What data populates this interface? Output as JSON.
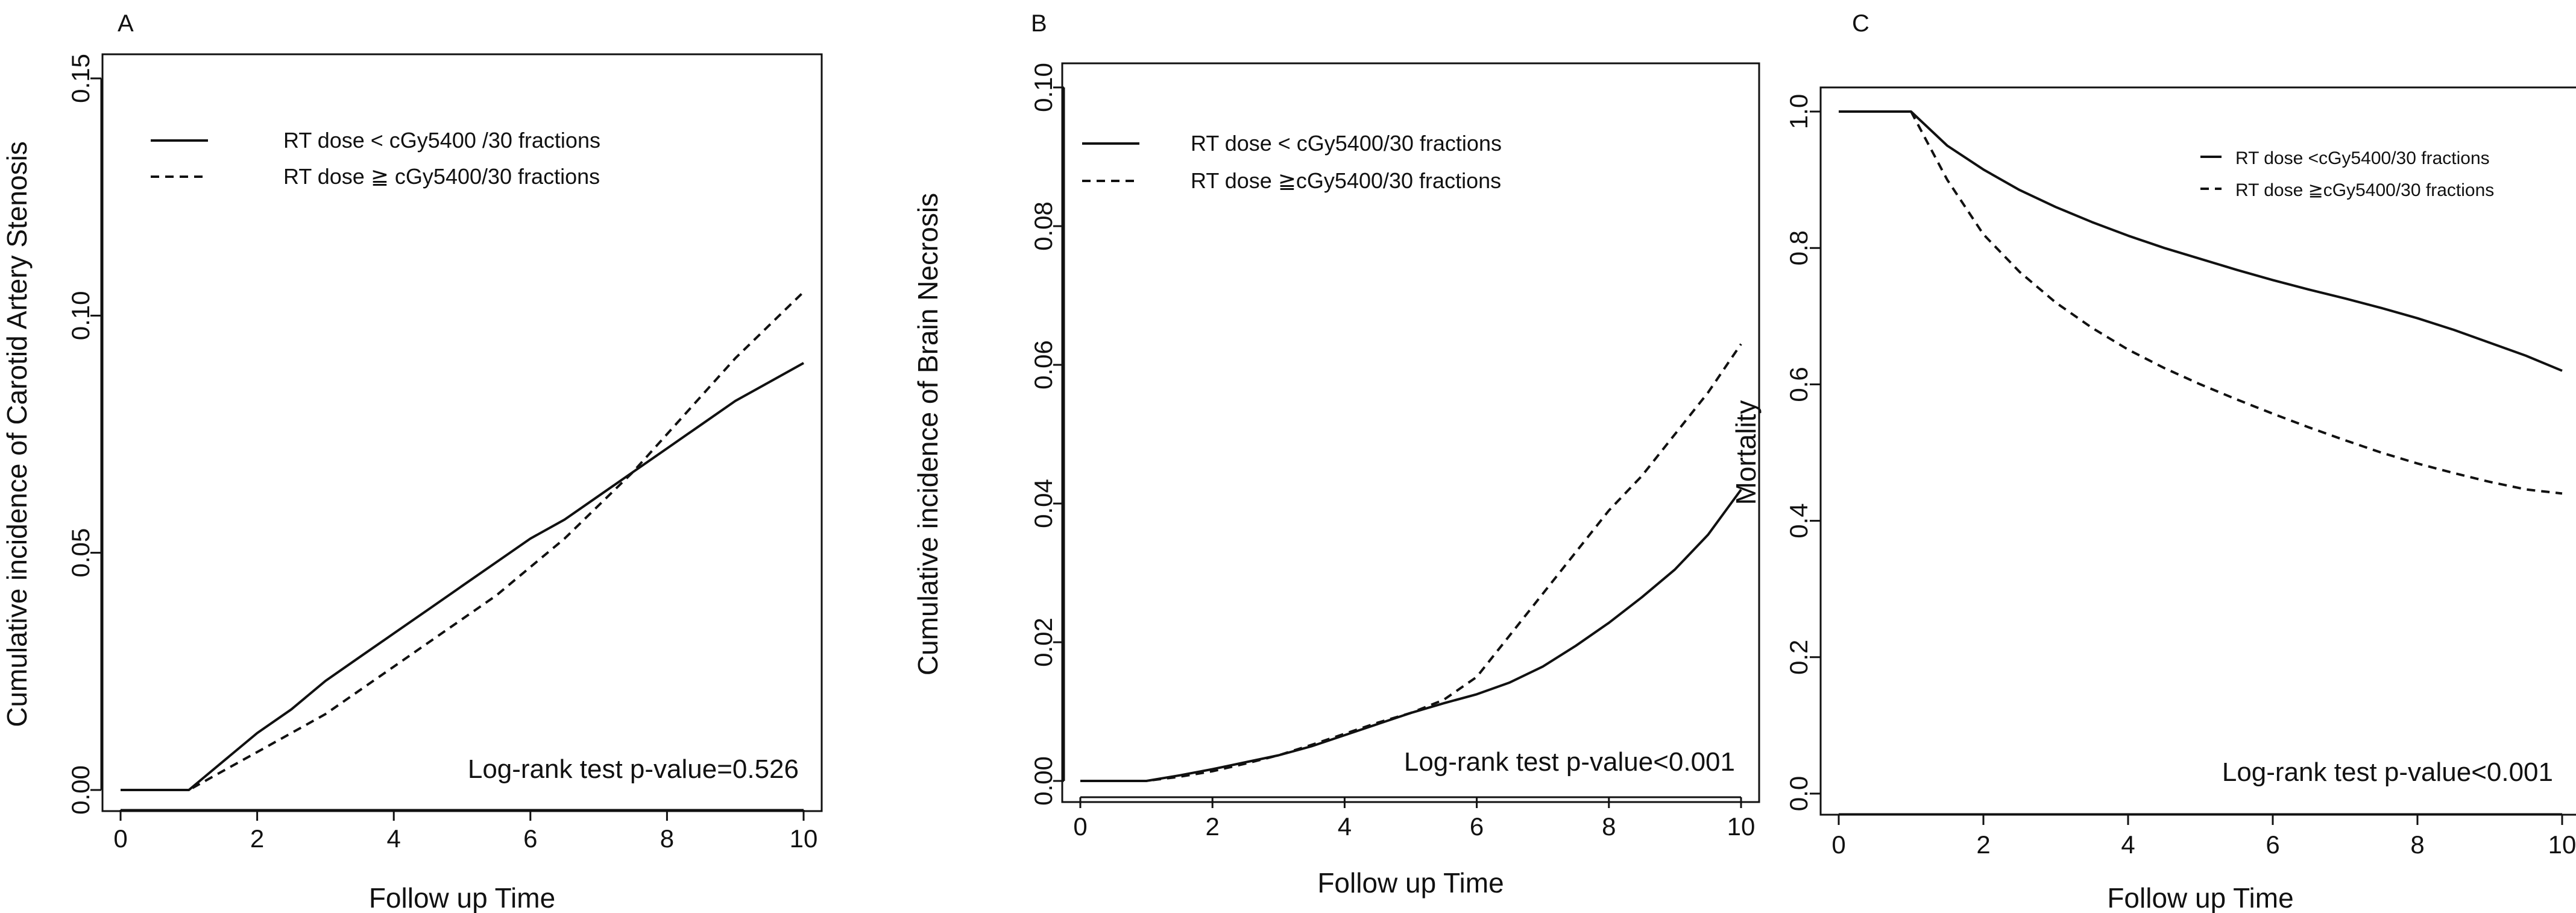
{
  "chart_data": [
    {
      "type": "line",
      "panel_label": "A",
      "title": "",
      "xlabel": "Follow up Time",
      "ylabel": "Cumulative incidence of Carotid Artery Stenosis",
      "xlim": [
        0,
        10
      ],
      "ylim": [
        0,
        0.15
      ],
      "xticks": [
        "0",
        "2",
        "4",
        "6",
        "8",
        "10"
      ],
      "yticks": [
        "0.00",
        "0.05",
        "0.10",
        "0.15"
      ],
      "legend_position": "top-left",
      "annotation": "Log-rank test p-value=0.526",
      "series": [
        {
          "name": "RT dose < cGy5400 /30 fractions",
          "line_style": "solid",
          "x": [
            0,
            1,
            1.5,
            2,
            2.5,
            3,
            3.5,
            4,
            4.5,
            5,
            5.5,
            6,
            6.5,
            7,
            7.5,
            8,
            8.5,
            9,
            9.5,
            10
          ],
          "y": [
            0,
            0,
            0.006,
            0.012,
            0.017,
            0.023,
            0.028,
            0.033,
            0.038,
            0.043,
            0.048,
            0.053,
            0.057,
            0.062,
            0.067,
            0.072,
            0.077,
            0.082,
            0.086,
            0.09
          ]
        },
        {
          "name": "RT dose ≧ cGy5400/30 fractions",
          "line_style": "dashed",
          "x": [
            0,
            1,
            1.5,
            2,
            2.5,
            3,
            3.5,
            4,
            4.5,
            5,
            5.5,
            6,
            6.5,
            7,
            7.5,
            8,
            8.5,
            9,
            9.5,
            10
          ],
          "y": [
            0,
            0,
            0.004,
            0.008,
            0.012,
            0.016,
            0.021,
            0.026,
            0.031,
            0.036,
            0.041,
            0.047,
            0.053,
            0.06,
            0.067,
            0.075,
            0.083,
            0.091,
            0.098,
            0.105
          ]
        }
      ]
    },
    {
      "type": "line",
      "panel_label": "B",
      "title": "",
      "xlabel": "Follow up Time",
      "ylabel": "Cumulative incidence of Brain Necrosis",
      "xlim": [
        0,
        10
      ],
      "ylim": [
        0,
        0.1
      ],
      "xticks": [
        "0",
        "2",
        "4",
        "6",
        "8",
        "10"
      ],
      "yticks": [
        "0.00",
        "0.02",
        "0.04",
        "0.06",
        "0.08",
        "0.10"
      ],
      "legend_position": "top-left",
      "annotation": "Log-rank test p-value<0.001",
      "series": [
        {
          "name": "RT dose < cGy5400/30 fractions",
          "line_style": "solid",
          "x": [
            0,
            1,
            1.5,
            2,
            2.5,
            3,
            3.5,
            4,
            4.5,
            5,
            5.5,
            6,
            6.5,
            7,
            7.5,
            8,
            8.5,
            9,
            9.5,
            10
          ],
          "y": [
            0,
            0,
            0.0008,
            0.0017,
            0.0027,
            0.0037,
            0.005,
            0.0066,
            0.0082,
            0.0098,
            0.0112,
            0.0125,
            0.0142,
            0.0165,
            0.0195,
            0.0228,
            0.0265,
            0.0305,
            0.0355,
            0.042
          ]
        },
        {
          "name": "RT dose ≧cGy5400/30  fractions",
          "line_style": "dashed",
          "x": [
            0,
            1,
            1.5,
            2,
            2.5,
            3,
            3.5,
            4,
            4.5,
            5,
            5.5,
            6,
            6.5,
            7,
            7.5,
            8,
            8.5,
            9,
            9.5,
            10
          ],
          "y": [
            0,
            0,
            0.0006,
            0.0014,
            0.0025,
            0.0037,
            0.0052,
            0.0068,
            0.0084,
            0.0098,
            0.0117,
            0.015,
            0.021,
            0.027,
            0.033,
            0.039,
            0.044,
            0.05,
            0.056,
            0.063
          ]
        }
      ]
    },
    {
      "type": "line",
      "panel_label": "C",
      "title": "",
      "xlabel": "Follow up Time",
      "ylabel": "Mortality",
      "xlim": [
        0,
        10
      ],
      "ylim": [
        0,
        1.0
      ],
      "xticks": [
        "0",
        "2",
        "4",
        "6",
        "8",
        "10"
      ],
      "yticks": [
        "0.0",
        "0.2",
        "0.4",
        "0.6",
        "0.8",
        "1.0"
      ],
      "legend_position": "top-right",
      "annotation": "Log-rank test p-value<0.001",
      "series": [
        {
          "name": "RT dose <cGy5400/30 fractions",
          "line_style": "solid",
          "x": [
            0,
            1,
            1.5,
            2,
            2.5,
            3,
            3.5,
            4,
            4.5,
            5,
            5.5,
            6,
            6.5,
            7,
            7.5,
            8,
            8.5,
            9,
            9.5,
            10
          ],
          "y": [
            1.0,
            1.0,
            0.95,
            0.915,
            0.885,
            0.86,
            0.838,
            0.818,
            0.8,
            0.784,
            0.768,
            0.753,
            0.739,
            0.726,
            0.712,
            0.697,
            0.68,
            0.661,
            0.642,
            0.62
          ]
        },
        {
          "name": "RT dose ≧cGy5400/30 fractions",
          "line_style": "dashed",
          "x": [
            0,
            1,
            1.5,
            2,
            2.5,
            3,
            3.5,
            4,
            4.5,
            5,
            5.5,
            6,
            6.5,
            7,
            7.5,
            8,
            8.5,
            9,
            9.5,
            10
          ],
          "y": [
            1.0,
            1.0,
            0.9,
            0.82,
            0.765,
            0.72,
            0.683,
            0.651,
            0.624,
            0.6,
            0.578,
            0.557,
            0.537,
            0.518,
            0.5,
            0.484,
            0.47,
            0.457,
            0.446,
            0.44
          ]
        }
      ]
    }
  ]
}
